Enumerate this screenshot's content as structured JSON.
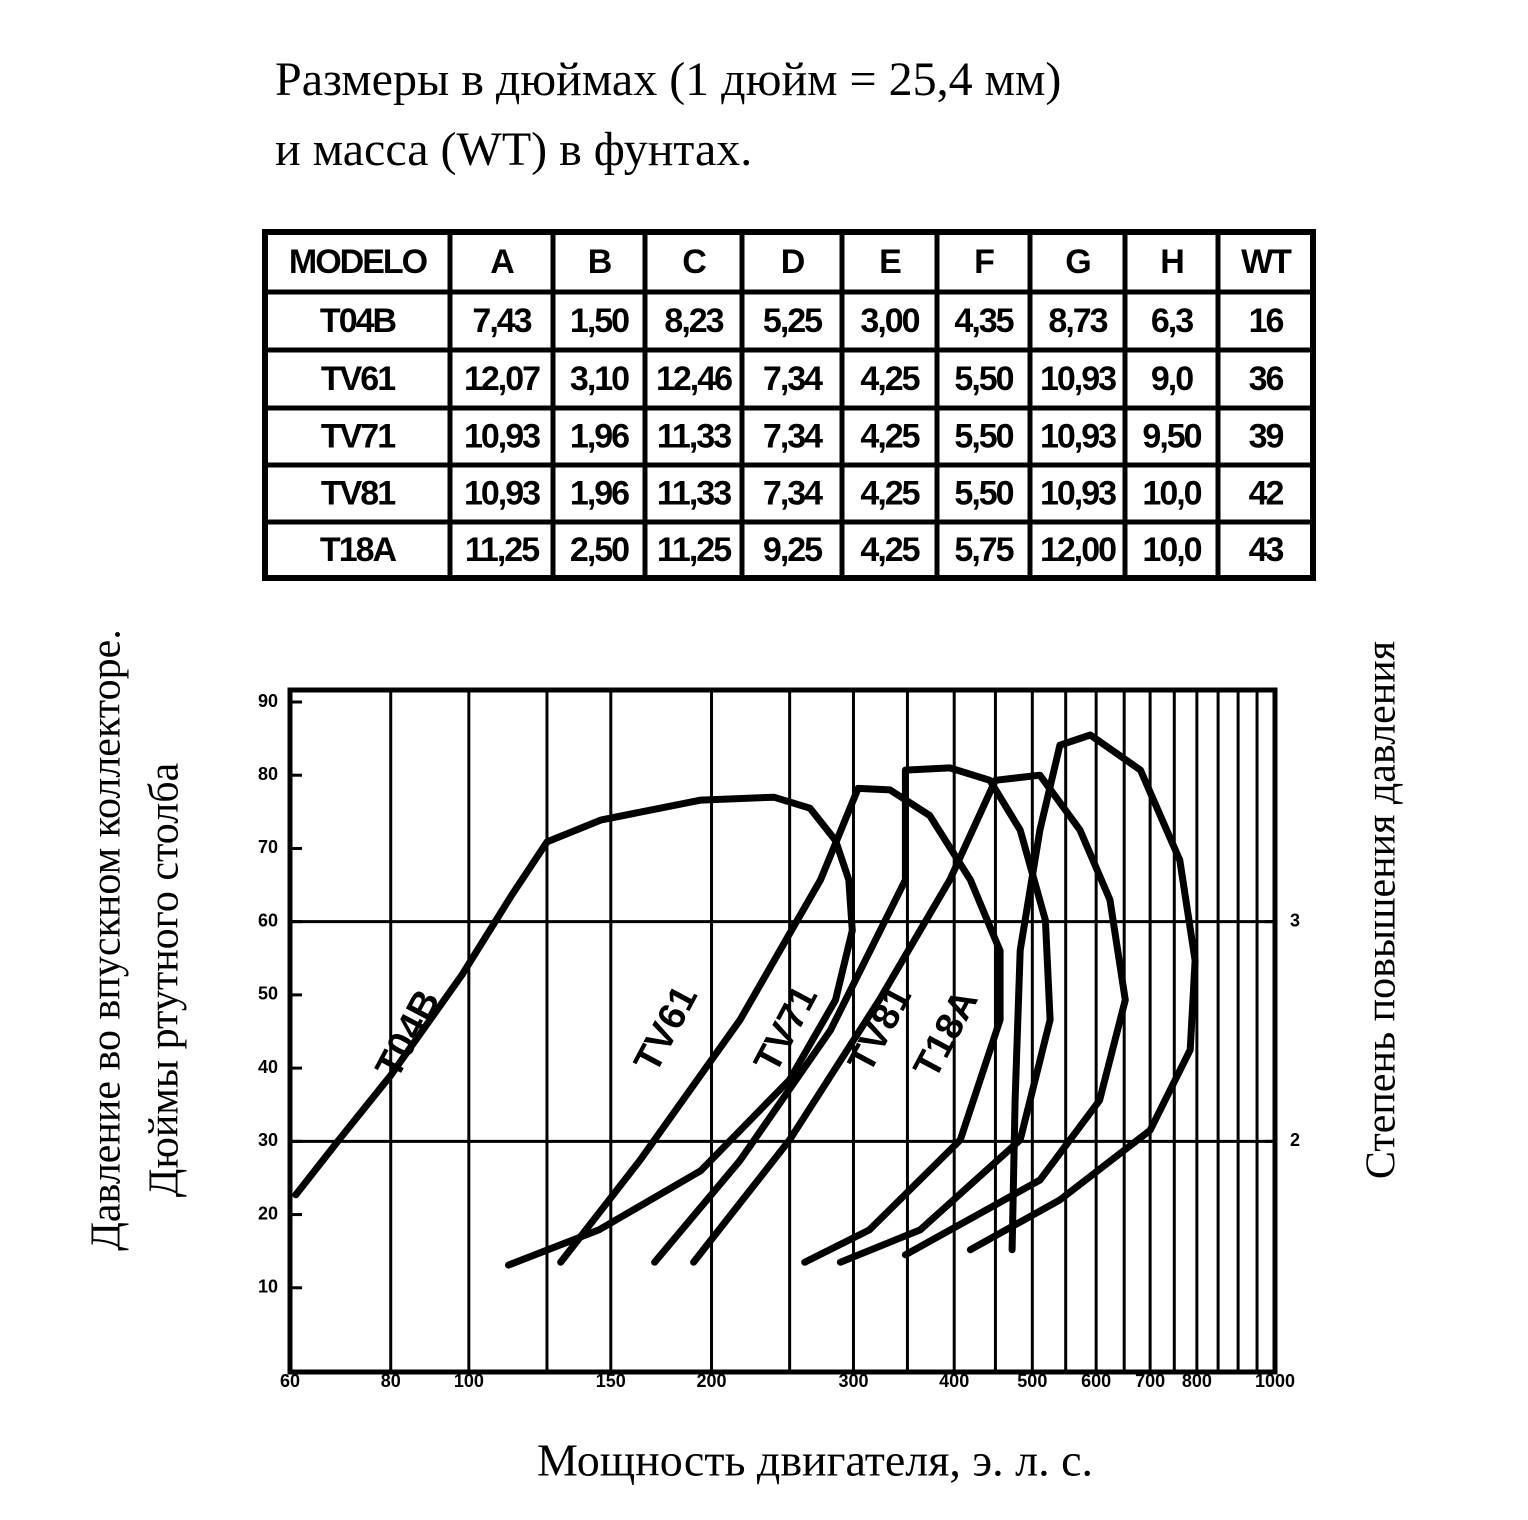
{
  "header": {
    "title": [
      "Размеры в дюймах (1 дюйм = 25,4 мм)",
      "и масса (WT) в фунтах."
    ]
  },
  "table": {
    "header": [
      "MODELO",
      "A",
      "B",
      "C",
      "D",
      "E",
      "F",
      "G",
      "H",
      "WT"
    ],
    "rows": [
      [
        "T04B",
        "7,43",
        "1,50",
        "8,23",
        "5,25",
        "3,00",
        "4,35",
        "8,73",
        "6,3",
        "16"
      ],
      [
        "TV61",
        "12,07",
        "3,10",
        "12,46",
        "7,34",
        "4,25",
        "5,50",
        "10,93",
        "9,0",
        "36"
      ],
      [
        "TV71",
        "10,93",
        "1,96",
        "11,33",
        "7,34",
        "4,25",
        "5,50",
        "10,93",
        "9,50",
        "39"
      ],
      [
        "TV81",
        "10,93",
        "1,96",
        "11,33",
        "7,34",
        "4,25",
        "5,50",
        "10,93",
        "10,0",
        "42"
      ],
      [
        "T18A",
        "11,25",
        "2,50",
        "11,25",
        "9,25",
        "4,25",
        "5,75",
        "12,00",
        "10,0",
        "43"
      ]
    ]
  },
  "chart_data": {
    "type": "line",
    "ylabel": [
      "Давление во впускном коллекторе.",
      "Дюймы ртутного столба"
    ],
    "y2label": "Степень повышения давления",
    "xlabel": "Мощность двигателя, э. л. с.",
    "xscale": "log",
    "xlim": [
      60,
      1000
    ],
    "xticks": [
      60,
      80,
      100,
      150,
      200,
      300,
      400,
      500,
      600,
      700,
      800,
      1000
    ],
    "xminor": [
      125,
      250,
      350,
      450,
      550,
      650,
      750,
      850,
      900,
      950
    ],
    "ylim": [
      0,
      90
    ],
    "yticks": [
      10,
      20,
      30,
      40,
      50,
      60,
      70,
      80,
      90
    ],
    "ygrid": [
      30,
      60
    ],
    "y2lim": [
      1,
      4
    ],
    "y2ticks": [
      2,
      3
    ],
    "series": [
      {
        "name": "T04B",
        "color": "#000000",
        "x": [
          61,
          69,
          80,
          98,
          113,
          125,
          146,
          194,
          239,
          265,
          285,
          296,
          299,
          285,
          250,
          194,
          145,
          112
        ],
        "values": [
          22.7,
          30.2,
          39,
          52.7,
          63.6,
          70.9,
          73.9,
          76.6,
          77,
          75.5,
          71.1,
          65.7,
          58.8,
          49.3,
          38.4,
          26,
          17.9,
          13.1
        ]
      },
      {
        "name": "TV61",
        "color": "#000000",
        "x": [
          130,
          163,
          217,
          273,
          304,
          333,
          373,
          419,
          456,
          456,
          407,
          314,
          261
        ],
        "values": [
          13.5,
          27.4,
          46.6,
          65.7,
          78.2,
          78,
          74.5,
          65.7,
          56,
          46.6,
          30.2,
          17.9,
          13.5
        ]
      },
      {
        "name": "TV71",
        "color": "#000000",
        "x": [
          170,
          217,
          281,
          348,
          348,
          395,
          443,
          483,
          519,
          526,
          483,
          363,
          289
        ],
        "values": [
          13.5,
          27.4,
          45.2,
          65.7,
          80.7,
          81,
          79.3,
          72.5,
          60.2,
          46.6,
          30.2,
          17.9,
          13.5
        ]
      },
      {
        "name": "TV81",
        "color": "#000000",
        "x": [
          190,
          250,
          323,
          395,
          450,
          511,
          573,
          624,
          652,
          606,
          511,
          348
        ],
        "values": [
          13.5,
          30.2,
          49.3,
          65.7,
          79.3,
          80,
          72.5,
          63,
          49.3,
          35.6,
          24.7,
          14.5
        ]
      },
      {
        "name": "T18A",
        "color": "#000000",
        "x": [
          472,
          476,
          483,
          511,
          541,
          590,
          681,
          762,
          796,
          785,
          700,
          541,
          419
        ],
        "values": [
          15.2,
          35.6,
          56.1,
          72.5,
          84.1,
          85.5,
          80.7,
          68.4,
          54.7,
          42.5,
          31.5,
          22,
          15.2
        ]
      }
    ]
  }
}
